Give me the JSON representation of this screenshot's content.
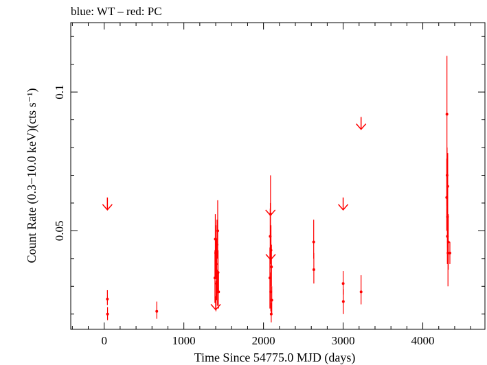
{
  "chart_data": {
    "type": "scatter",
    "title": "blue: WT – red: PC",
    "xlabel": "Time Since 54775.0 MJD (days)",
    "ylabel": "Count Rate (0.3−10.0 keV)(cts s⁻¹)",
    "xlim": [
      -420,
      4780
    ],
    "ylim": [
      0.0145,
      0.125
    ],
    "y_scale": "linear",
    "grid": false,
    "x_ticks": [
      0,
      1000,
      2000,
      3000,
      4000
    ],
    "x_tick_labels": [
      "0",
      "1000",
      "2000",
      "3000",
      "4000"
    ],
    "y_ticks": [
      0.05,
      0.1
    ],
    "y_tick_labels": [
      "0.05",
      "0.1"
    ],
    "series_color": "#ff0000",
    "points": [
      {
        "x": 40,
        "y": 0.0254,
        "ylo": 0.0232,
        "yhi": 0.0286
      },
      {
        "x": 42,
        "y": 0.02,
        "ylo": 0.0178,
        "yhi": 0.0225
      },
      {
        "x": 660,
        "y": 0.021,
        "ylo": 0.0183,
        "yhi": 0.0245
      },
      {
        "x": 1390,
        "y": 0.033,
        "ylo": 0.024,
        "yhi": 0.043
      },
      {
        "x": 1395,
        "y": 0.047,
        "ylo": 0.038,
        "yhi": 0.056
      },
      {
        "x": 1400,
        "y": 0.042,
        "ylo": 0.033,
        "yhi": 0.052
      },
      {
        "x": 1403,
        "y": 0.026,
        "ylo": 0.021,
        "yhi": 0.032
      },
      {
        "x": 1408,
        "y": 0.038,
        "ylo": 0.03,
        "yhi": 0.047
      },
      {
        "x": 1412,
        "y": 0.031,
        "ylo": 0.025,
        "yhi": 0.038
      },
      {
        "x": 1416,
        "y": 0.045,
        "ylo": 0.036,
        "yhi": 0.054
      },
      {
        "x": 1420,
        "y": 0.029,
        "ylo": 0.023,
        "yhi": 0.036
      },
      {
        "x": 1425,
        "y": 0.05,
        "ylo": 0.04,
        "yhi": 0.061
      },
      {
        "x": 1430,
        "y": 0.035,
        "ylo": 0.028,
        "yhi": 0.043
      },
      {
        "x": 1436,
        "y": 0.028,
        "ylo": 0.022,
        "yhi": 0.035
      },
      {
        "x": 2080,
        "y": 0.033,
        "ylo": 0.022,
        "yhi": 0.044
      },
      {
        "x": 2084,
        "y": 0.048,
        "ylo": 0.038,
        "yhi": 0.058
      },
      {
        "x": 2088,
        "y": 0.056,
        "ylo": 0.044,
        "yhi": 0.07
      },
      {
        "x": 2091,
        "y": 0.028,
        "ylo": 0.021,
        "yhi": 0.035
      },
      {
        "x": 2094,
        "y": 0.043,
        "ylo": 0.035,
        "yhi": 0.052
      },
      {
        "x": 2097,
        "y": 0.02,
        "ylo": 0.017,
        "yhi": 0.024
      },
      {
        "x": 2100,
        "y": 0.037,
        "ylo": 0.03,
        "yhi": 0.045
      },
      {
        "x": 2104,
        "y": 0.025,
        "ylo": 0.02,
        "yhi": 0.03
      },
      {
        "x": 2630,
        "y": 0.046,
        "ylo": 0.04,
        "yhi": 0.054
      },
      {
        "x": 2632,
        "y": 0.036,
        "ylo": 0.031,
        "yhi": 0.042
      },
      {
        "x": 3000,
        "y": 0.031,
        "ylo": 0.027,
        "yhi": 0.0355
      },
      {
        "x": 3002,
        "y": 0.0245,
        "ylo": 0.02,
        "yhi": 0.029
      },
      {
        "x": 3225,
        "y": 0.028,
        "ylo": 0.0235,
        "yhi": 0.034
      },
      {
        "x": 4300,
        "y": 0.062,
        "ylo": 0.05,
        "yhi": 0.076
      },
      {
        "x": 4303,
        "y": 0.092,
        "ylo": 0.074,
        "yhi": 0.113
      },
      {
        "x": 4305,
        "y": 0.07,
        "ylo": 0.059,
        "yhi": 0.08
      },
      {
        "x": 4308,
        "y": 0.048,
        "ylo": 0.038,
        "yhi": 0.058
      },
      {
        "x": 4310,
        "y": 0.055,
        "ylo": 0.044,
        "yhi": 0.068
      },
      {
        "x": 4313,
        "y": 0.066,
        "ylo": 0.054,
        "yhi": 0.078
      },
      {
        "x": 4316,
        "y": 0.042,
        "ylo": 0.03,
        "yhi": 0.054
      },
      {
        "x": 4320,
        "y": 0.046,
        "ylo": 0.036,
        "yhi": 0.056
      },
      {
        "x": 4340,
        "y": 0.042,
        "ylo": 0.038,
        "yhi": 0.046
      }
    ],
    "upper_limits": [
      {
        "x": 40,
        "y": 0.062
      },
      {
        "x": 1400,
        "y": 0.026
      },
      {
        "x": 2087,
        "y": 0.06
      },
      {
        "x": 2090,
        "y": 0.044
      },
      {
        "x": 3000,
        "y": 0.062
      },
      {
        "x": 3225,
        "y": 0.091
      }
    ]
  }
}
